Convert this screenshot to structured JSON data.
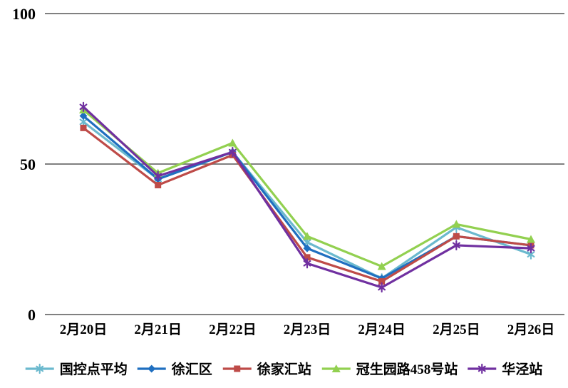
{
  "chart_data": {
    "type": "line",
    "title": "",
    "xlabel": "",
    "ylabel": "",
    "categories": [
      "2月20日",
      "2月21日",
      "2月22日",
      "2月23日",
      "2月24日",
      "2月25日",
      "2月26日"
    ],
    "series": [
      {
        "name": "国控点平均",
        "color": "#6BB9CE",
        "marker": "asterisk",
        "values": [
          64,
          45,
          54,
          24,
          12,
          29,
          20
        ]
      },
      {
        "name": "徐汇区",
        "color": "#1F6FC0",
        "marker": "diamond",
        "values": [
          66,
          45,
          54,
          22,
          12,
          26,
          23
        ]
      },
      {
        "name": "徐家汇站",
        "color": "#BE4B48",
        "marker": "square",
        "values": [
          62,
          43,
          53,
          19,
          11,
          26,
          23
        ]
      },
      {
        "name": "冠生园路458号站",
        "color": "#92D050",
        "marker": "triangle",
        "values": [
          68,
          47,
          57,
          26,
          16,
          30,
          25
        ]
      },
      {
        "name": "华泾站",
        "color": "#7030A0",
        "marker": "asterisk",
        "values": [
          69,
          46,
          54,
          17,
          9,
          23,
          22
        ]
      }
    ],
    "ylim": [
      0,
      100
    ],
    "yticks": [
      0,
      50,
      100
    ],
    "grid": "horizontal",
    "gridline_color": "#808080",
    "background_color": "#ffffff",
    "legend_position": "bottom"
  }
}
